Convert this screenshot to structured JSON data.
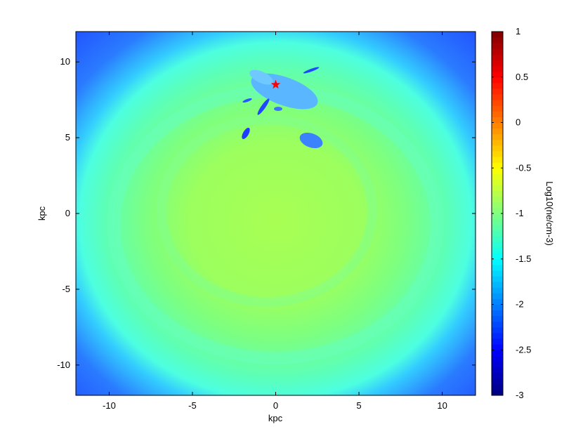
{
  "chart_data": {
    "type": "heatmap",
    "xlabel": "kpc",
    "ylabel": "kpc",
    "xlim": [
      -12,
      12
    ],
    "ylim": [
      -12,
      12
    ],
    "xticks": [
      -10,
      -5,
      0,
      5,
      10
    ],
    "yticks": [
      -10,
      -5,
      0,
      5,
      10
    ],
    "colormap": "jet",
    "clim": [
      -3,
      1
    ],
    "cticks": [
      -3,
      -2.5,
      -2,
      -1.5,
      -1,
      -0.5,
      0,
      0.5,
      1
    ],
    "colorbar_label": "Log10(ne/cm-3)",
    "points": {
      "x": [
        0
      ],
      "y": [
        8.5
      ],
      "color": "#ff0000"
    }
  }
}
